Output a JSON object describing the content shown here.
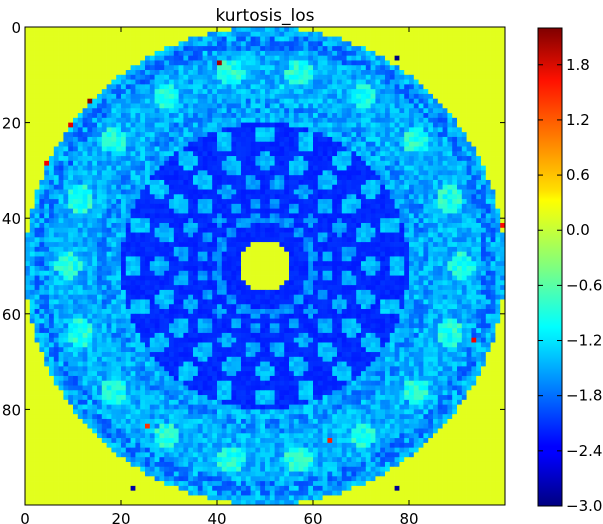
{
  "chart_data": {
    "type": "heatmap",
    "title": "kurtosis_los",
    "xlabel": "",
    "ylabel": "",
    "grid_size": 100,
    "xlim": [
      0,
      100
    ],
    "ylim": [
      100,
      0
    ],
    "x_ticks": [
      0,
      20,
      40,
      60,
      80
    ],
    "y_ticks": [
      0,
      20,
      40,
      60,
      80
    ],
    "x_tick_labels": [
      "0",
      "20",
      "40",
      "60",
      "80"
    ],
    "y_tick_labels": [
      "0",
      "20",
      "40",
      "60",
      "80"
    ],
    "colormap": "jet",
    "vmin": -3.0,
    "vmax": 2.2,
    "colorbar_ticks": [
      1.8,
      1.2,
      0.6,
      0.0,
      -0.6,
      -1.2,
      -1.8,
      -2.4,
      -3.0
    ],
    "colorbar_tick_labels": [
      "1.8",
      "1.2",
      "0.6",
      "0.0",
      "−0.6",
      "−1.2",
      "−1.8",
      "−2.4",
      "−3.0"
    ],
    "center": [
      49.5,
      49.5
    ],
    "outside_value": 0.1,
    "center_disk": {
      "radius": 5.2,
      "value": 0.1
    },
    "inner_region": {
      "radius_end": 30,
      "base_value": -2.15,
      "blob_rings": [
        {
          "radius": 27.5,
          "count": 20,
          "value": -1.35
        },
        {
          "radius": 22.0,
          "count": 20,
          "value": -1.4
        },
        {
          "radius": 17.5,
          "count": 20,
          "value": -1.5
        },
        {
          "radius": 13.5,
          "count": 20,
          "value": -1.55
        },
        {
          "radius": 10.0,
          "count": 20,
          "value": -1.6
        }
      ]
    },
    "outer_band": {
      "radius_start": 30,
      "radius_end": 50,
      "base_value": -1.45,
      "bright_radius": 41,
      "bright_value": -0.9,
      "bright_count": 18,
      "dark_radius": 47,
      "dark_value": -1.9
    },
    "hot_pixels": [
      {
        "x": 40,
        "y": 7,
        "value": 2.0
      },
      {
        "x": 13,
        "y": 15,
        "value": 2.1
      },
      {
        "x": 9,
        "y": 20,
        "value": 1.7
      },
      {
        "x": 4,
        "y": 28,
        "value": 1.6
      },
      {
        "x": 77,
        "y": 6,
        "value": -3.0
      },
      {
        "x": 99,
        "y": 41,
        "value": 1.5
      },
      {
        "x": 93,
        "y": 65,
        "value": 1.6
      },
      {
        "x": 25,
        "y": 83,
        "value": 1.3
      },
      {
        "x": 63,
        "y": 86,
        "value": 1.4
      },
      {
        "x": 22,
        "y": 96,
        "value": -2.8
      },
      {
        "x": 77,
        "y": 96,
        "value": -2.9
      },
      {
        "x": 89,
        "y": 75,
        "value": -1.9
      },
      {
        "x": 53,
        "y": 12,
        "value": -1.0
      },
      {
        "x": 30,
        "y": 95,
        "value": -1.2
      }
    ]
  }
}
